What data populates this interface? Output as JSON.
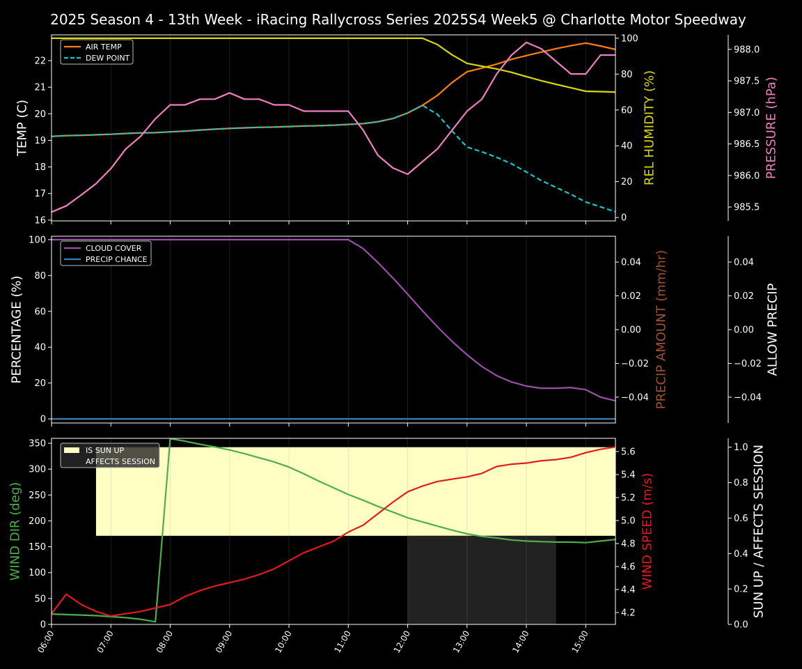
{
  "title": "2025 Season 4 - 13th Week - iRacing Rallycross Series 2025S4 Week5 @ Charlotte Motor Speedway",
  "chart_data": {
    "type": "line",
    "x": [
      "06:00",
      "06:15",
      "06:30",
      "06:45",
      "07:00",
      "07:15",
      "07:30",
      "07:45",
      "08:00",
      "08:15",
      "08:30",
      "08:45",
      "09:00",
      "09:15",
      "09:30",
      "09:45",
      "10:00",
      "10:15",
      "10:30",
      "10:45",
      "11:00",
      "11:15",
      "11:30",
      "11:45",
      "12:00",
      "12:15",
      "12:30",
      "12:45",
      "13:00",
      "13:15",
      "13:30",
      "13:45",
      "14:00",
      "14:15",
      "14:30",
      "14:45",
      "15:00",
      "15:15",
      "15:30"
    ],
    "xlim": [
      "06:00",
      "15:30"
    ],
    "x_ticks": [
      "06:00",
      "07:00",
      "08:00",
      "09:00",
      "10:00",
      "11:00",
      "12:00",
      "13:00",
      "14:00",
      "15:00"
    ],
    "grid": "vertical at hours",
    "panels": [
      {
        "axes": {
          "left": {
            "label": "TEMP (C)",
            "color": "#ffffff",
            "ylim": [
              15.97,
              22.97
            ],
            "ticks": [
              16,
              17,
              18,
              19,
              20,
              21,
              22
            ],
            "tick_labels": [
              "16",
              "17",
              "18",
              "19",
              "20",
              "21",
              "22"
            ]
          },
          "right": {
            "label": "REL HUMIDITY (%)",
            "color": "#d8d800",
            "ylim": [
              -1.9,
              101.9
            ],
            "ticks": [
              0,
              20,
              40,
              60,
              80,
              100
            ],
            "tick_labels": [
              "0",
              "20",
              "40",
              "60",
              "80",
              "100"
            ]
          },
          "right2": {
            "label": "PRESSURE (hPa)",
            "color": "#f07fbf",
            "ylim": [
              985.28,
              988.23
            ],
            "ticks": [
              985.5,
              986.0,
              986.5,
              987.0,
              987.5,
              988.0
            ],
            "tick_labels": [
              "985.5",
              "986.0",
              "986.5",
              "987.0",
              "987.5",
              "988.0"
            ]
          }
        },
        "legend": {
          "placement": "top-left",
          "entries": [
            "AIR TEMP",
            "DEW POINT"
          ]
        },
        "series": [
          {
            "name": "AIR TEMP",
            "axis": "left",
            "color": "#ff7f0e",
            "style": "solid",
            "values": [
              19.15,
              19.18,
              19.19,
              19.21,
              19.23,
              19.26,
              19.28,
              19.29,
              19.32,
              19.35,
              19.39,
              19.42,
              19.45,
              19.47,
              19.49,
              19.5,
              19.52,
              19.54,
              19.55,
              19.57,
              19.6,
              19.63,
              19.7,
              19.82,
              20.03,
              20.32,
              20.69,
              21.18,
              21.58,
              21.72,
              21.87,
              22.05,
              22.19,
              22.32,
              22.45,
              22.56,
              22.66,
              22.55,
              22.42
            ]
          },
          {
            "name": "DEW POINT",
            "axis": "left",
            "color": "#12c8cc",
            "style": "dashed",
            "values": [
              19.15,
              19.18,
              19.19,
              19.21,
              19.23,
              19.26,
              19.28,
              19.29,
              19.32,
              19.35,
              19.39,
              19.42,
              19.45,
              19.47,
              19.49,
              19.5,
              19.52,
              19.54,
              19.55,
              19.57,
              19.6,
              19.63,
              19.7,
              19.82,
              20.03,
              20.32,
              19.98,
              19.35,
              18.75,
              18.57,
              18.36,
              18.12,
              17.81,
              17.49,
              17.23,
              16.97,
              16.68,
              16.5,
              16.31
            ]
          },
          {
            "axis": "right",
            "color": "#d8d800",
            "style": "solid",
            "values": [
              100,
              100,
              100,
              100,
              100,
              100,
              100,
              100,
              100,
              100,
              100,
              100,
              100,
              100,
              100,
              100,
              100,
              100,
              100,
              100,
              100,
              100,
              100,
              100,
              100,
              100,
              96.5,
              90.7,
              86.0,
              84.4,
              82.9,
              81.0,
              78.6,
              76.3,
              74.3,
              72.4,
              70.4,
              70.2,
              70.0
            ]
          },
          {
            "axis": "right2",
            "color": "#f07fbf",
            "style": "solid",
            "values": [
              985.42,
              985.52,
              985.69,
              985.87,
              986.11,
              986.42,
              986.62,
              986.9,
              987.12,
              987.12,
              987.21,
              987.21,
              987.31,
              987.21,
              987.21,
              987.12,
              987.12,
              987.02,
              987.02,
              987.02,
              987.02,
              986.72,
              986.32,
              986.12,
              986.02,
              986.22,
              986.42,
              986.72,
              987.02,
              987.21,
              987.61,
              987.91,
              988.11,
              988.01,
              987.81,
              987.61,
              987.61,
              987.91,
              987.91
            ]
          }
        ]
      },
      {
        "axes": {
          "left": {
            "label": "PERCENTAGE (%)",
            "color": "#ffffff",
            "ylim": [
              -2.3,
              101.9
            ],
            "ticks": [
              0,
              20,
              40,
              60,
              80,
              100
            ],
            "tick_labels": [
              "0",
              "20",
              "40",
              "60",
              "80",
              "100"
            ]
          },
          "right": {
            "label": "PRECIP AMOUNT (mm/hr)",
            "color": "#a0522d",
            "ylim": [
              -0.0553,
              0.0553
            ],
            "ticks": [
              -0.04,
              -0.02,
              0,
              0.02,
              0.04
            ],
            "tick_labels": [
              "−0.04",
              "−0.02",
              "0.00",
              "0.02",
              "0.04"
            ]
          },
          "right2": {
            "label": "ALLOW PRECIP",
            "color": "#ffffff",
            "ylim": [
              -0.0553,
              0.0553
            ],
            "ticks": [
              -0.04,
              -0.02,
              0,
              0.02,
              0.04
            ],
            "tick_labels": [
              "−0.04",
              "−0.02",
              "0.00",
              "0.02",
              "0.04"
            ]
          }
        },
        "legend": {
          "placement": "top-left",
          "entries": [
            "CLOUD COVER",
            "PRECIP CHANCE"
          ]
        },
        "series": [
          {
            "name": "CLOUD COVER",
            "axis": "left",
            "color": "#9b4fa8",
            "style": "solid",
            "values": [
              100,
              100,
              100,
              100,
              100,
              100,
              100,
              100,
              100,
              100,
              100,
              100,
              100,
              100,
              100,
              100,
              100,
              100,
              100,
              100,
              100,
              95,
              87.2,
              78.6,
              69.6,
              60.3,
              51.4,
              43.2,
              35.8,
              29.2,
              24.1,
              20.6,
              18.3,
              17.1,
              17.1,
              17.5,
              16.3,
              12.1,
              10.1
            ]
          },
          {
            "name": "PRECIP CHANCE",
            "axis": "left",
            "color": "#377eb8",
            "style": "solid",
            "values": [
              0,
              0,
              0,
              0,
              0,
              0,
              0,
              0,
              0,
              0,
              0,
              0,
              0,
              0,
              0,
              0,
              0,
              0,
              0,
              0,
              0,
              0,
              0,
              0,
              0,
              0,
              0,
              0,
              0,
              0,
              0,
              0,
              0,
              0,
              0,
              0,
              0,
              0,
              0
            ]
          }
        ]
      },
      {
        "axes": {
          "left": {
            "label": "WIND DIR (deg)",
            "color": "#4daf4a",
            "ylim": [
              0,
              359.5
            ],
            "ticks": [
              0,
              50,
              100,
              150,
              200,
              250,
              300,
              350
            ],
            "tick_labels": [
              "0",
              "50",
              "100",
              "150",
              "200",
              "250",
              "300",
              "350"
            ]
          },
          "right": {
            "label": "WIND SPEED (m/s)",
            "color": "#e41a1c",
            "ylim": [
              4.097,
              5.715
            ],
            "ticks": [
              4.2,
              4.4,
              4.6,
              4.8,
              5.0,
              5.2,
              5.4,
              5.6
            ],
            "tick_labels": [
              "4.2",
              "4.4",
              "4.6",
              "4.8",
              "5.0",
              "5.2",
              "5.4",
              "5.6"
            ]
          },
          "right2": {
            "label": "SUN UP / AFFECTS SESSION",
            "color": "#ffffff",
            "ylim": [
              0,
              1.05
            ],
            "ticks": [
              0,
              0.2,
              0.4,
              0.6,
              0.8,
              1.0
            ],
            "tick_labels": [
              "0.0",
              "0.2",
              "0.4",
              "0.6",
              "0.8",
              "1.0"
            ]
          }
        },
        "legend": {
          "placement": "top-left",
          "entries": [
            "IS SUN UP",
            "AFFECTS SESSION"
          ]
        },
        "spans": [
          {
            "name": "IS SUN UP",
            "axis": "right2",
            "color": "#ffffc4",
            "start": "06:45",
            "end": "15:30",
            "y_range": [
              0.5,
              1.0
            ]
          },
          {
            "name": "AFFECTS SESSION",
            "axis": "right2",
            "color": "#222222",
            "start": "12:00",
            "end": "14:30",
            "y_range": [
              0,
              0.5
            ]
          }
        ],
        "series": [
          {
            "axis": "left",
            "color": "#4daf4a",
            "style": "solid",
            "values": [
              20,
              19,
              18,
              17,
              15,
              13,
              10,
              5,
              359,
              354,
              348,
              343,
              337,
              330,
              322,
              314,
              304,
              291,
              277,
              264,
              251,
              240,
              228,
              217,
              206,
              198,
              190,
              182,
              175,
              170,
              167,
              163,
              161,
              160,
              159,
              159,
              158,
              161,
              164
            ]
          },
          {
            "axis": "right",
            "color": "#e41a1c",
            "style": "solid",
            "values": [
              4.19,
              4.36,
              4.27,
              4.21,
              4.17,
              4.19,
              4.21,
              4.24,
              4.27,
              4.34,
              4.39,
              4.43,
              4.46,
              4.49,
              4.53,
              4.58,
              4.65,
              4.72,
              4.77,
              4.82,
              4.9,
              4.96,
              5.06,
              5.16,
              5.25,
              5.3,
              5.34,
              5.36,
              5.38,
              5.41,
              5.47,
              5.49,
              5.5,
              5.52,
              5.53,
              5.55,
              5.59,
              5.62,
              5.64
            ]
          }
        ]
      }
    ]
  }
}
